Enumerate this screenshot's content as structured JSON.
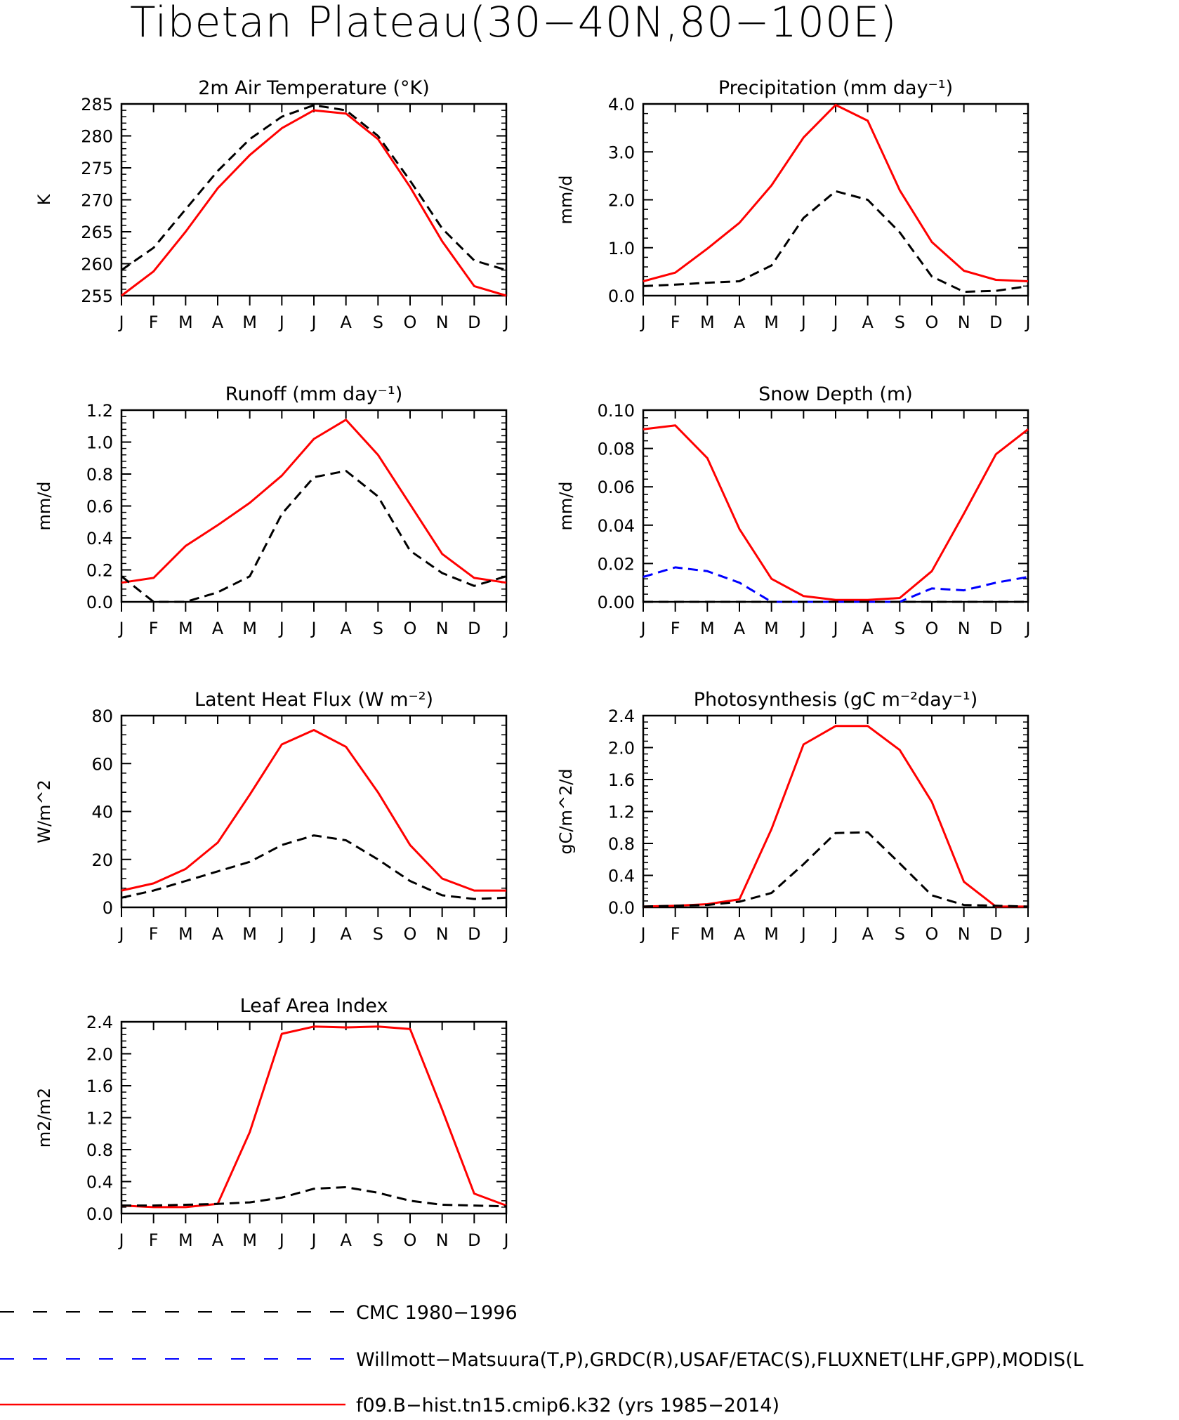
{
  "figure": {
    "title": "Tibetan Plateau(30−40N,80−100E)"
  },
  "legend": [
    {
      "label": "CMC 1980−1996",
      "color": "#000000",
      "dash": "dashed"
    },
    {
      "label": "Willmott−Matsuura(T,P),GRDC(R),USAF/ETAC(S),FLUXNET(LHF,GPP),MODIS(L",
      "color": "#0000ff",
      "dash": "dashed"
    },
    {
      "label": "f09.B−hist.tn15.cmip6.k32 (yrs 1985−2014)",
      "color": "#ff0000",
      "dash": "solid"
    }
  ],
  "chart_data": [
    {
      "type": "line",
      "title": "2m Air Temperature (°K)",
      "ylabel": "K",
      "x": [
        "J",
        "F",
        "M",
        "A",
        "M",
        "J",
        "J",
        "A",
        "S",
        "O",
        "N",
        "D",
        "J"
      ],
      "ylim": [
        255,
        285
      ],
      "yticks": [
        {
          "v": 255,
          "label": "255"
        },
        {
          "v": 260,
          "label": "260"
        },
        {
          "v": 265,
          "label": "265"
        },
        {
          "v": 270,
          "label": "270"
        },
        {
          "v": 275,
          "label": "275"
        },
        {
          "v": 280,
          "label": "280"
        },
        {
          "v": 285,
          "label": "285"
        }
      ],
      "series": [
        {
          "color": "#ff0000",
          "dash": "solid",
          "values": [
            255.0,
            258.8,
            265.0,
            271.8,
            277.0,
            281.2,
            284.0,
            283.5,
            279.5,
            272.0,
            263.5,
            256.5,
            255.0
          ]
        },
        {
          "color": "#000000",
          "dash": "dashed",
          "values": [
            259.0,
            262.5,
            268.5,
            274.5,
            279.5,
            283.0,
            284.8,
            284.0,
            280.0,
            273.0,
            265.5,
            260.5,
            259.0
          ]
        }
      ]
    },
    {
      "type": "line",
      "title": "Precipitation (mm day⁻¹)",
      "ylabel": "mm/d",
      "x": [
        "J",
        "F",
        "M",
        "A",
        "M",
        "J",
        "J",
        "A",
        "S",
        "O",
        "N",
        "D",
        "J"
      ],
      "ylim": [
        0,
        4
      ],
      "yticks": [
        {
          "v": 0,
          "label": "0.0"
        },
        {
          "v": 1,
          "label": "1.0"
        },
        {
          "v": 2,
          "label": "2.0"
        },
        {
          "v": 3,
          "label": "3.0"
        },
        {
          "v": 4,
          "label": "4.0"
        }
      ],
      "series": [
        {
          "color": "#ff0000",
          "dash": "solid",
          "values": [
            0.3,
            0.48,
            0.98,
            1.52,
            2.3,
            3.3,
            3.98,
            3.65,
            2.2,
            1.12,
            0.52,
            0.33,
            0.3
          ]
        },
        {
          "color": "#000000",
          "dash": "dashed",
          "values": [
            0.2,
            0.23,
            0.27,
            0.3,
            0.63,
            1.62,
            2.18,
            2.0,
            1.32,
            0.4,
            0.08,
            0.1,
            0.2
          ]
        }
      ]
    },
    {
      "type": "line",
      "title": "Runoff (mm day⁻¹)",
      "ylabel": "mm/d",
      "x": [
        "J",
        "F",
        "M",
        "A",
        "M",
        "J",
        "J",
        "A",
        "S",
        "O",
        "N",
        "D",
        "J"
      ],
      "ylim": [
        0,
        1.2
      ],
      "yticks": [
        {
          "v": 0,
          "label": "0.0"
        },
        {
          "v": 0.2,
          "label": "0.2"
        },
        {
          "v": 0.4,
          "label": "0.4"
        },
        {
          "v": 0.6,
          "label": "0.6"
        },
        {
          "v": 0.8,
          "label": "0.8"
        },
        {
          "v": 1.0,
          "label": "1.0"
        },
        {
          "v": 1.2,
          "label": "1.2"
        }
      ],
      "series": [
        {
          "color": "#ff0000",
          "dash": "solid",
          "values": [
            0.12,
            0.15,
            0.35,
            0.48,
            0.62,
            0.79,
            1.02,
            1.14,
            0.92,
            0.61,
            0.3,
            0.15,
            0.12
          ]
        },
        {
          "color": "#000000",
          "dash": "dashed",
          "values": [
            0.16,
            0.0,
            0.0,
            0.06,
            0.16,
            0.55,
            0.78,
            0.82,
            0.66,
            0.32,
            0.18,
            0.1,
            0.16
          ]
        }
      ]
    },
    {
      "type": "line",
      "title": "Snow Depth (m)",
      "ylabel": "mm/d",
      "x": [
        "J",
        "F",
        "M",
        "A",
        "M",
        "J",
        "J",
        "A",
        "S",
        "O",
        "N",
        "D",
        "J"
      ],
      "ylim": [
        0,
        0.1
      ],
      "yticks": [
        {
          "v": 0,
          "label": "0.00"
        },
        {
          "v": 0.02,
          "label": "0.02"
        },
        {
          "v": 0.04,
          "label": "0.04"
        },
        {
          "v": 0.06,
          "label": "0.06"
        },
        {
          "v": 0.08,
          "label": "0.08"
        },
        {
          "v": 0.1,
          "label": "0.10"
        }
      ],
      "series": [
        {
          "color": "#ff0000",
          "dash": "solid",
          "values": [
            0.09,
            0.092,
            0.075,
            0.038,
            0.012,
            0.003,
            0.001,
            0.001,
            0.002,
            0.016,
            0.046,
            0.077,
            0.09
          ]
        },
        {
          "color": "#0000ff",
          "dash": "dashed",
          "values": [
            0.013,
            0.018,
            0.016,
            0.01,
            0.0,
            0.0,
            0.0,
            0.0,
            0.0,
            0.007,
            0.006,
            0.01,
            0.013
          ]
        },
        {
          "color": "#000000",
          "dash": "dashed",
          "values": [
            0.0,
            0.0,
            0.0,
            0.0,
            0.0,
            0.0,
            0.0,
            0.0,
            0.0,
            0.0,
            0.0,
            0.0,
            0.0
          ]
        }
      ]
    },
    {
      "type": "line",
      "title": "Latent Heat Flux (W m⁻²)",
      "ylabel": "W/m^2",
      "x": [
        "J",
        "F",
        "M",
        "A",
        "M",
        "J",
        "J",
        "A",
        "S",
        "O",
        "N",
        "D",
        "J"
      ],
      "ylim": [
        0,
        80
      ],
      "yticks": [
        {
          "v": 0,
          "label": "0"
        },
        {
          "v": 20,
          "label": "20"
        },
        {
          "v": 40,
          "label": "40"
        },
        {
          "v": 60,
          "label": "60"
        },
        {
          "v": 80,
          "label": "80"
        }
      ],
      "series": [
        {
          "color": "#ff0000",
          "dash": "solid",
          "values": [
            7,
            10,
            16,
            27,
            47,
            68,
            74,
            67,
            48,
            26,
            12,
            7,
            7
          ]
        },
        {
          "color": "#000000",
          "dash": "dashed",
          "values": [
            4,
            7,
            11,
            15,
            19,
            26,
            30,
            28,
            20,
            11,
            5,
            3.5,
            4
          ]
        }
      ]
    },
    {
      "type": "line",
      "title": "Photosynthesis (gC m⁻²day⁻¹)",
      "ylabel": "gC/m^2/d",
      "x": [
        "J",
        "F",
        "M",
        "A",
        "M",
        "J",
        "J",
        "A",
        "S",
        "O",
        "N",
        "D",
        "J"
      ],
      "ylim": [
        0,
        2.4
      ],
      "yticks": [
        {
          "v": 0,
          "label": "0.0"
        },
        {
          "v": 0.4,
          "label": "0.4"
        },
        {
          "v": 0.8,
          "label": "0.8"
        },
        {
          "v": 1.2,
          "label": "1.2"
        },
        {
          "v": 1.6,
          "label": "1.6"
        },
        {
          "v": 2.0,
          "label": "2.0"
        },
        {
          "v": 2.4,
          "label": "2.4"
        }
      ],
      "series": [
        {
          "color": "#ff0000",
          "dash": "solid",
          "values": [
            0.01,
            0.02,
            0.04,
            0.1,
            0.98,
            2.04,
            2.27,
            2.27,
            1.97,
            1.32,
            0.32,
            0.01,
            0.01
          ]
        },
        {
          "color": "#000000",
          "dash": "dashed",
          "values": [
            0.01,
            0.02,
            0.03,
            0.07,
            0.18,
            0.54,
            0.93,
            0.94,
            0.55,
            0.15,
            0.03,
            0.02,
            0.01
          ]
        }
      ]
    },
    {
      "type": "line",
      "title": "Leaf Area Index",
      "ylabel": "m2/m2",
      "x": [
        "J",
        "F",
        "M",
        "A",
        "M",
        "J",
        "J",
        "A",
        "S",
        "O",
        "N",
        "D",
        "J"
      ],
      "ylim": [
        0,
        2.4
      ],
      "yticks": [
        {
          "v": 0,
          "label": "0.0"
        },
        {
          "v": 0.4,
          "label": "0.4"
        },
        {
          "v": 0.8,
          "label": "0.8"
        },
        {
          "v": 1.2,
          "label": "1.2"
        },
        {
          "v": 1.6,
          "label": "1.6"
        },
        {
          "v": 2.0,
          "label": "2.0"
        },
        {
          "v": 2.4,
          "label": "2.4"
        }
      ],
      "series": [
        {
          "color": "#ff0000",
          "dash": "solid",
          "values": [
            0.1,
            0.08,
            0.08,
            0.12,
            1.02,
            2.25,
            2.34,
            2.33,
            2.34,
            2.31,
            1.3,
            0.25,
            0.1
          ]
        },
        {
          "color": "#000000",
          "dash": "dashed",
          "values": [
            0.1,
            0.1,
            0.11,
            0.12,
            0.14,
            0.2,
            0.31,
            0.33,
            0.26,
            0.16,
            0.11,
            0.1,
            0.09
          ]
        }
      ]
    }
  ]
}
